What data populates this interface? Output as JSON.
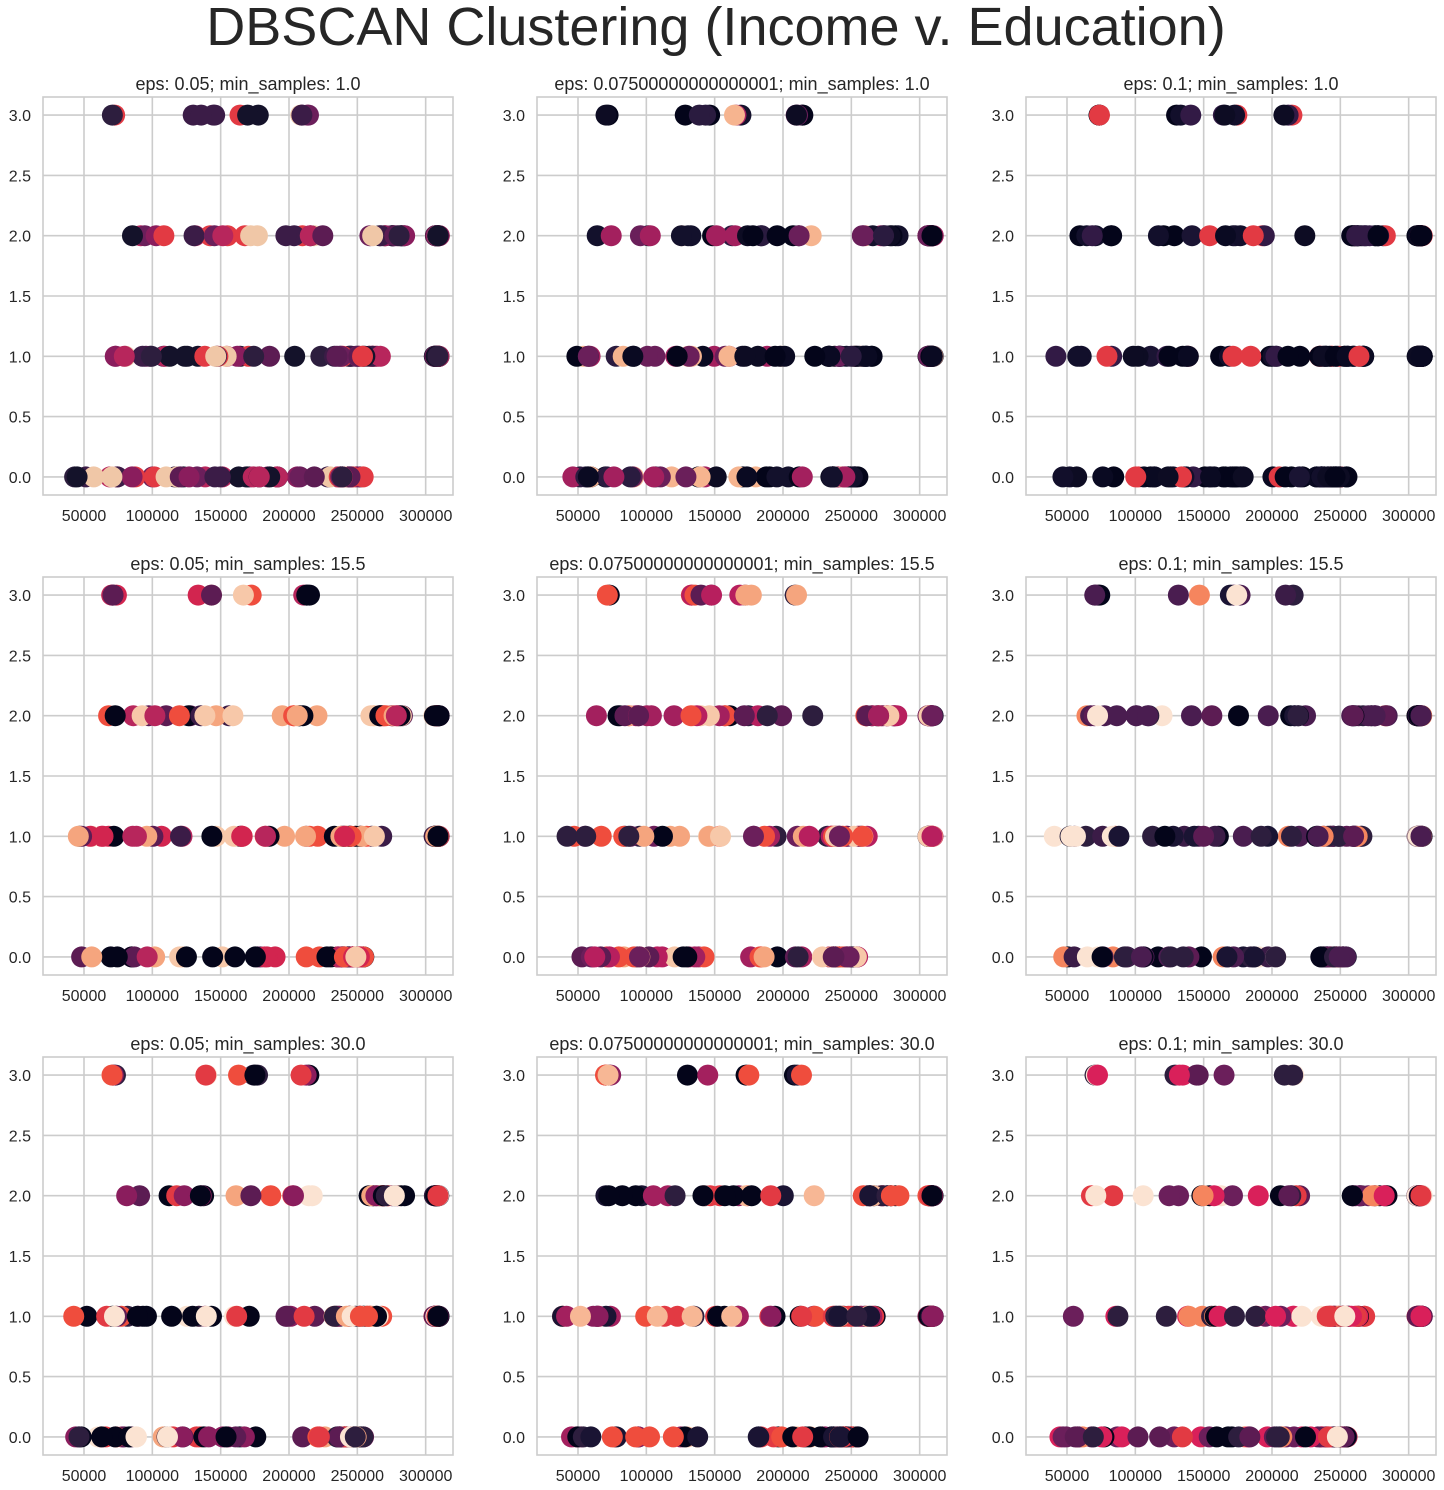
{
  "figure": {
    "suptitle": "DBSCAN Clustering (Income v. Education)"
  },
  "chart_data": [
    {
      "type": "scatter",
      "title": "eps: 0.05; min_samples: 1.0",
      "xlim": [
        20000,
        320000
      ],
      "ylim": [
        -0.15,
        3.15
      ],
      "xticks": [
        "50000",
        "100000",
        "150000",
        "200000",
        "250000",
        "300000"
      ],
      "yticks": [
        "0.0",
        "0.5",
        "1.0",
        "1.5",
        "2.0",
        "2.5",
        "3.0"
      ],
      "grid": true,
      "palette": [
        "#2d1e3e",
        "#5c1c53",
        "#8a1d5d",
        "#6b1f5b",
        "#3b1c47",
        "#b7265c",
        "#f0c7a7",
        "#e23a43",
        "#14122a"
      ],
      "seed": 11
    },
    {
      "type": "scatter",
      "title": "eps: 0.07500000000000001; min_samples: 1.0",
      "xlim": [
        20000,
        320000
      ],
      "ylim": [
        -0.15,
        3.15
      ],
      "xticks": [
        "50000",
        "100000",
        "150000",
        "200000",
        "250000",
        "300000"
      ],
      "yticks": [
        "0.0",
        "0.5",
        "1.0",
        "1.5",
        "2.0",
        "2.5",
        "3.0"
      ],
      "grid": true,
      "palette": [
        "#0a0a22",
        "#04051a",
        "#13112c",
        "#2a1b3f",
        "#6a1f5a",
        "#f6b48f",
        "#a3205e",
        "#0d0c23",
        "#04051a"
      ],
      "seed": 23
    },
    {
      "type": "scatter",
      "title": "eps: 0.1; min_samples: 1.0",
      "xlim": [
        20000,
        320000
      ],
      "ylim": [
        -0.15,
        3.15
      ],
      "xticks": [
        "50000",
        "100000",
        "150000",
        "200000",
        "250000",
        "300000"
      ],
      "yticks": [
        "0.0",
        "0.5",
        "1.0",
        "1.5",
        "2.0",
        "2.5",
        "3.0"
      ],
      "grid": true,
      "palette": [
        "#0a0a22",
        "#04051a",
        "#120f2b",
        "#1a1433",
        "#04051a",
        "#321a45",
        "#0d0c23",
        "#e23a43",
        "#04051a"
      ],
      "seed": 37
    },
    {
      "type": "scatter",
      "title": "eps: 0.05; min_samples: 15.5",
      "xlim": [
        20000,
        320000
      ],
      "ylim": [
        -0.15,
        3.15
      ],
      "xticks": [
        "50000",
        "100000",
        "150000",
        "200000",
        "250000",
        "300000"
      ],
      "yticks": [
        "0.0",
        "0.5",
        "1.0",
        "1.5",
        "2.0",
        "2.5",
        "3.0"
      ],
      "grid": true,
      "palette": [
        "#04051a",
        "#ef4d3d",
        "#d2254f",
        "#5c1c53",
        "#f5a57e",
        "#3b1c47",
        "#b7265c",
        "#f7c8a9",
        "#04051a"
      ],
      "seed": 41
    },
    {
      "type": "scatter",
      "title": "eps: 0.07500000000000001; min_samples: 15.5",
      "xlim": [
        20000,
        320000
      ],
      "ylim": [
        -0.15,
        3.15
      ],
      "xticks": [
        "50000",
        "100000",
        "150000",
        "200000",
        "250000",
        "300000"
      ],
      "yticks": [
        "0.0",
        "0.5",
        "1.0",
        "1.5",
        "2.0",
        "2.5",
        "3.0"
      ],
      "grid": true,
      "palette": [
        "#b71f5e",
        "#a3205e",
        "#5c1c53",
        "#2d1e3e",
        "#f5a57e",
        "#04051a",
        "#ef4d3d",
        "#f7c8a9",
        "#6b1f5b"
      ],
      "seed": 53
    },
    {
      "type": "scatter",
      "title": "eps: 0.1; min_samples: 15.5",
      "xlim": [
        20000,
        320000
      ],
      "ylim": [
        -0.15,
        3.15
      ],
      "xticks": [
        "50000",
        "100000",
        "150000",
        "200000",
        "250000",
        "300000"
      ],
      "yticks": [
        "0.0",
        "0.5",
        "1.0",
        "1.5",
        "2.0",
        "2.5",
        "3.0"
      ],
      "grid": true,
      "palette": [
        "#4a1d50",
        "#2d1e3e",
        "#1a1433",
        "#5c1c53",
        "#fbe3d2",
        "#f5855e",
        "#04051a",
        "#3b1c47",
        "#4a1d50"
      ],
      "seed": 67
    },
    {
      "type": "scatter",
      "title": "eps: 0.05; min_samples: 30.0",
      "xlim": [
        20000,
        320000
      ],
      "ylim": [
        -0.15,
        3.15
      ],
      "xticks": [
        "50000",
        "100000",
        "150000",
        "200000",
        "250000",
        "300000"
      ],
      "yticks": [
        "0.0",
        "0.5",
        "1.0",
        "1.5",
        "2.0",
        "2.5",
        "3.0"
      ],
      "grid": true,
      "palette": [
        "#04051a",
        "#f5a57e",
        "#8a1d5d",
        "#ef4d3d",
        "#5c1c53",
        "#fbe3d2",
        "#2d1e3e",
        "#04051a",
        "#e23a43"
      ],
      "seed": 79
    },
    {
      "type": "scatter",
      "title": "eps: 0.07500000000000001; min_samples: 30.0",
      "xlim": [
        20000,
        320000
      ],
      "ylim": [
        -0.15,
        3.15
      ],
      "xticks": [
        "50000",
        "100000",
        "150000",
        "200000",
        "250000",
        "300000"
      ],
      "yticks": [
        "0.0",
        "0.5",
        "1.0",
        "1.5",
        "2.0",
        "2.5",
        "3.0"
      ],
      "grid": true,
      "palette": [
        "#8a1d5d",
        "#a3205e",
        "#04051a",
        "#1a1433",
        "#ef4d3d",
        "#f7b795",
        "#e23a43",
        "#2d1e3e",
        "#04051a"
      ],
      "seed": 83
    },
    {
      "type": "scatter",
      "title": "eps: 0.1; min_samples: 30.0",
      "xlim": [
        20000,
        320000
      ],
      "ylim": [
        -0.15,
        3.15
      ],
      "xticks": [
        "50000",
        "100000",
        "150000",
        "200000",
        "250000",
        "300000"
      ],
      "yticks": [
        "0.0",
        "0.5",
        "1.0",
        "1.5",
        "2.0",
        "2.5",
        "3.0"
      ],
      "grid": true,
      "palette": [
        "#d9205a",
        "#6b1f5b",
        "#2d1e3e",
        "#04051a",
        "#fbe3d2",
        "#f5855e",
        "#5c1c53",
        "#d9205a",
        "#e23a43"
      ],
      "seed": 97
    }
  ]
}
